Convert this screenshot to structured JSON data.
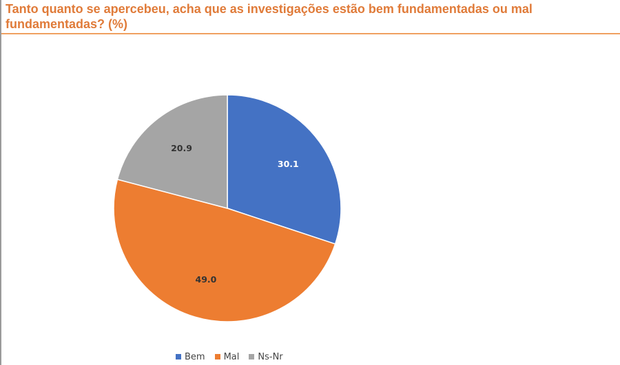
{
  "chart_data": {
    "type": "pie",
    "title": "Tanto quanto se apercebeu, acha que as investigações estão bem fundamentadas ou mal fundamentadas? (%)",
    "categories": [
      "Bem",
      "Mal",
      "Ns-Nr"
    ],
    "values": [
      30.1,
      49.0,
      20.9
    ],
    "data_labels": [
      "30.1",
      "49.0",
      "20.9"
    ],
    "colors": [
      "#4472c4",
      "#ed7d31",
      "#a5a5a5"
    ],
    "label_colors": [
      "#ffffff",
      "#333333",
      "#333333"
    ],
    "start_angle_deg": 0,
    "direction": "clockwise",
    "legend_position": "bottom"
  }
}
